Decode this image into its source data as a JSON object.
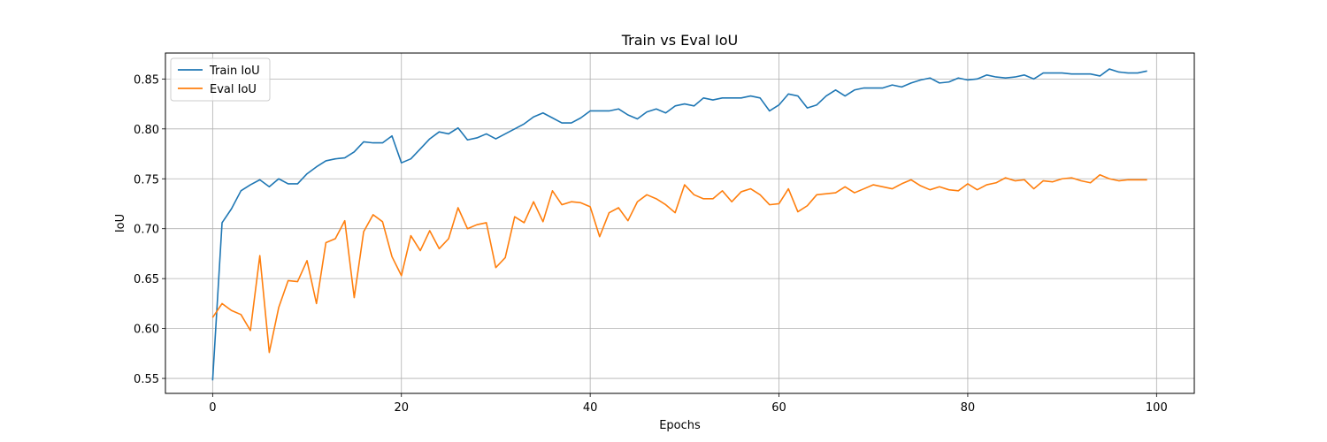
{
  "chart_data": {
    "type": "line",
    "title": "Train vs Eval IoU",
    "xlabel": "Epochs",
    "ylabel": "IoU",
    "xlim": [
      -5,
      104
    ],
    "ylim": [
      0.535,
      0.876
    ],
    "x_ticks": [
      0,
      20,
      40,
      60,
      80,
      100
    ],
    "y_ticks": [
      0.55,
      0.6,
      0.65,
      0.7,
      0.75,
      0.8,
      0.85
    ],
    "grid": true,
    "legend_position": "top-left",
    "series": [
      {
        "name": "Train IoU",
        "color": "#1f77b4",
        "values": [
          0.548,
          0.706,
          0.72,
          0.738,
          0.744,
          0.749,
          0.742,
          0.75,
          0.745,
          0.745,
          0.755,
          0.762,
          0.768,
          0.77,
          0.771,
          0.777,
          0.787,
          0.786,
          0.786,
          0.793,
          0.766,
          0.77,
          0.78,
          0.79,
          0.797,
          0.795,
          0.801,
          0.789,
          0.791,
          0.795,
          0.79,
          0.795,
          0.8,
          0.805,
          0.812,
          0.816,
          0.811,
          0.806,
          0.806,
          0.811,
          0.818,
          0.818,
          0.818,
          0.82,
          0.814,
          0.81,
          0.817,
          0.82,
          0.816,
          0.823,
          0.825,
          0.823,
          0.831,
          0.829,
          0.831,
          0.831,
          0.831,
          0.833,
          0.831,
          0.818,
          0.824,
          0.835,
          0.833,
          0.821,
          0.824,
          0.833,
          0.839,
          0.833,
          0.839,
          0.841,
          0.841,
          0.841,
          0.844,
          0.842,
          0.846,
          0.849,
          0.851,
          0.846,
          0.847,
          0.851,
          0.849,
          0.85,
          0.854,
          0.852,
          0.851,
          0.852,
          0.854,
          0.85,
          0.856,
          0.856,
          0.856,
          0.855,
          0.855,
          0.855,
          0.853,
          0.86,
          0.857,
          0.856,
          0.856,
          0.858
        ]
      },
      {
        "name": "Eval IoU",
        "color": "#ff7f0e",
        "values": [
          0.611,
          0.625,
          0.618,
          0.614,
          0.598,
          0.673,
          0.576,
          0.621,
          0.648,
          0.647,
          0.668,
          0.625,
          0.686,
          0.69,
          0.708,
          0.631,
          0.697,
          0.714,
          0.707,
          0.672,
          0.653,
          0.693,
          0.678,
          0.698,
          0.68,
          0.69,
          0.721,
          0.7,
          0.704,
          0.706,
          0.661,
          0.671,
          0.712,
          0.706,
          0.727,
          0.707,
          0.738,
          0.724,
          0.727,
          0.726,
          0.722,
          0.692,
          0.716,
          0.721,
          0.708,
          0.727,
          0.734,
          0.73,
          0.724,
          0.716,
          0.744,
          0.734,
          0.73,
          0.73,
          0.738,
          0.727,
          0.737,
          0.74,
          0.734,
          0.724,
          0.725,
          0.74,
          0.717,
          0.723,
          0.734,
          0.735,
          0.736,
          0.742,
          0.736,
          0.74,
          0.744,
          0.742,
          0.74,
          0.745,
          0.749,
          0.743,
          0.739,
          0.742,
          0.739,
          0.738,
          0.745,
          0.739,
          0.744,
          0.746,
          0.751,
          0.748,
          0.749,
          0.74,
          0.748,
          0.747,
          0.75,
          0.751,
          0.748,
          0.746,
          0.754,
          0.75,
          0.748,
          0.749,
          0.749,
          0.749
        ]
      }
    ]
  }
}
